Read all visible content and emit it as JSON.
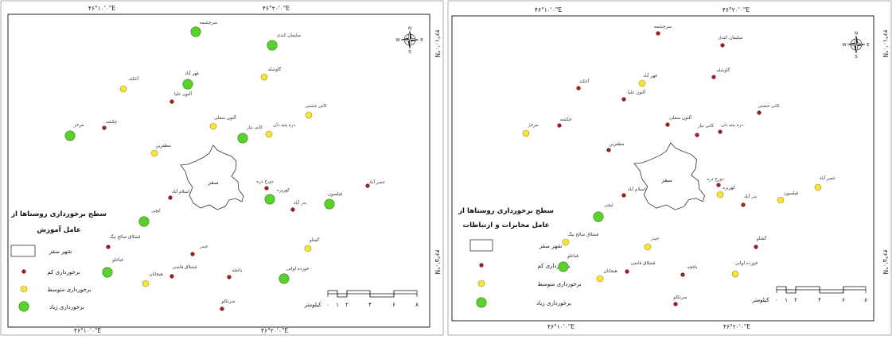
{
  "villages": [
    "سرچشمه",
    "سلیمان کندی",
    "آغکند",
    "قهر آباد",
    "آلتون علیا",
    "گاوشله",
    "کانی جشنی",
    "آلتون سفلی",
    "کانی نیاز",
    "دره پنبه دان",
    "چکشه",
    "مرخز",
    "مظفرین",
    "دورخ دره",
    "کهریزه",
    "بدر آباد",
    "عصر آباد",
    "قیلسون",
    "اسلام آباد",
    "ایچی",
    "قشلاق صالح بیگ",
    "حیدر",
    "قباغلو",
    "قشلاق قاضی",
    "هیجانان",
    "باغچه",
    "گمتلو",
    "خورده لوانی",
    "سرتکلو"
  ],
  "city_label": "سقز",
  "legend": {
    "city": "شهر سقز",
    "low": "برخورداری کم",
    "medium": "برخورداری متوسط",
    "high": "برخورداری زیاد"
  },
  "scale": {
    "unit": "کیلومتر",
    "ticks": [
      "۰",
      "۱",
      "۲",
      "۴",
      "۶",
      "۸"
    ]
  },
  "coords": {
    "lon": [
      "۴۶°۱۰'۰\"E",
      "۴۶°۲۰'۰\"E"
    ],
    "lat": [
      "۳۶°۱۰'۰\"N",
      "۳۶°۵'۰\"N"
    ]
  },
  "compass": {
    "n": "N",
    "s": "S",
    "e": "E",
    "w": "W"
  },
  "colors": {
    "low": "#a3201c",
    "medium": "#f9e43b",
    "high": "#5bd12e"
  },
  "maps": [
    {
      "title_line1": "سطح برخورداری روستاها از",
      "title_line2": "عامل آموزش",
      "levels": [
        "high",
        "high",
        "medium",
        "high",
        "low",
        "medium",
        "medium",
        "medium",
        "high",
        "medium",
        "low",
        "high",
        "medium",
        "low",
        "high",
        "low",
        "low",
        "high",
        "low",
        "high",
        "low",
        "low",
        "high",
        "low",
        "medium",
        "low",
        "medium",
        "high",
        "low"
      ]
    },
    {
      "title_line1": "سطح برخورداری روستاها از",
      "title_line2": "عامل مخابرات و ارتباطات",
      "levels": [
        "low",
        "low",
        "low",
        "medium",
        "low",
        "low",
        "low",
        "low",
        "low",
        "low",
        "low",
        "medium",
        "low",
        "low",
        "medium",
        "low",
        "medium",
        "medium",
        "low",
        "high",
        "medium",
        "medium",
        "high",
        "low",
        "medium",
        "low",
        "low",
        "medium",
        "low"
      ]
    }
  ]
}
